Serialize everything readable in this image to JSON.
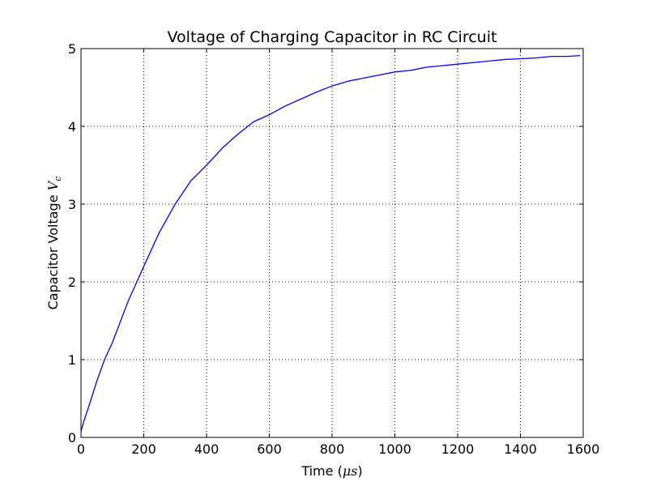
{
  "chart_data": {
    "type": "line",
    "title": "Voltage of Charging Capacitor in RC Circuit",
    "xlabel": "Time (μs)",
    "xlabel_text": "Time (",
    "xlabel_math": "μs",
    "xlabel_close": ")",
    "ylabel": "Capacitor Voltage V_c",
    "ylabel_text": "Capacitor Voltage ",
    "ylabel_math": "V",
    "ylabel_math_sub": "c",
    "xlim": [
      0,
      1600
    ],
    "ylim": [
      0,
      5
    ],
    "x_ticks": [
      0,
      200,
      400,
      600,
      800,
      1000,
      1200,
      1400,
      1600
    ],
    "y_ticks": [
      0,
      1,
      2,
      3,
      4,
      5
    ],
    "grid": true,
    "grid_style": "dotted",
    "line_color": "#0000ff",
    "series": [
      {
        "x": [
          0,
          10,
          25,
          50,
          75,
          100,
          150,
          200,
          250,
          300,
          350,
          400,
          450,
          500,
          550,
          600,
          650,
          700,
          750,
          800,
          850,
          900,
          950,
          1000,
          1050,
          1100,
          1150,
          1200,
          1250,
          1300,
          1350,
          1400,
          1450,
          1500,
          1550,
          1590
        ],
        "y": [
          0.08,
          0.22,
          0.4,
          0.72,
          1.0,
          1.22,
          1.75,
          2.2,
          2.64,
          3.0,
          3.3,
          3.5,
          3.72,
          3.9,
          4.06,
          4.15,
          4.26,
          4.35,
          4.44,
          4.52,
          4.58,
          4.62,
          4.66,
          4.7,
          4.72,
          4.76,
          4.78,
          4.8,
          4.82,
          4.84,
          4.86,
          4.87,
          4.88,
          4.9,
          4.9,
          4.91
        ]
      }
    ]
  }
}
